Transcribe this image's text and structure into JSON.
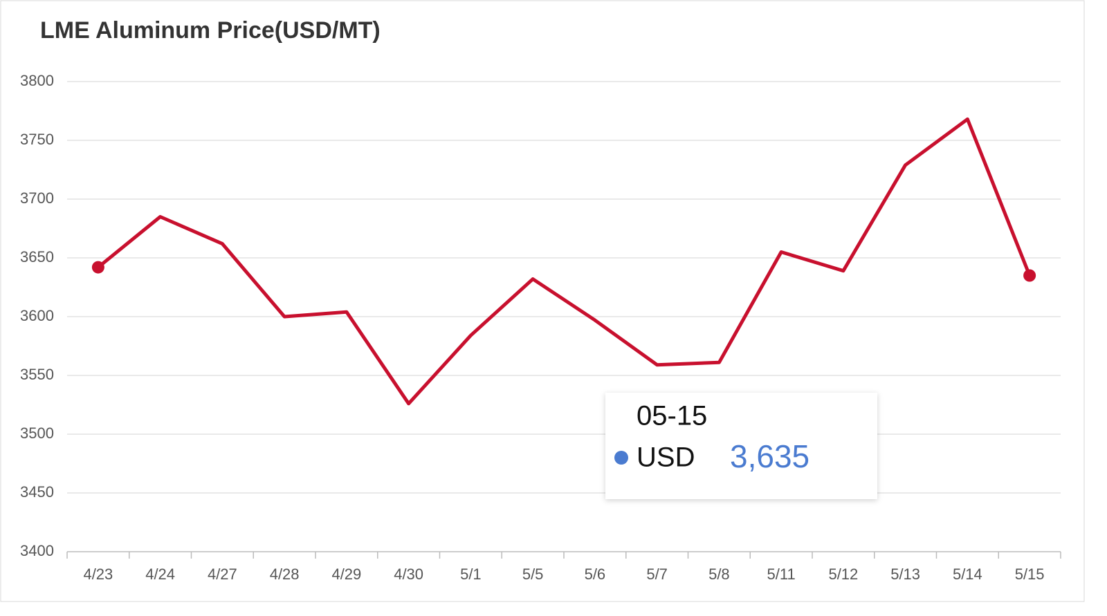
{
  "chart_data": {
    "type": "line",
    "title": "LME Aluminum Price(USD/MT)",
    "categories": [
      "4/23",
      "4/24",
      "4/27",
      "4/28",
      "4/29",
      "4/30",
      "5/1",
      "5/5",
      "5/6",
      "5/7",
      "5/8",
      "5/11",
      "5/12",
      "5/13",
      "5/14",
      "5/15"
    ],
    "series": [
      {
        "name": "USD",
        "color": "#c8102e",
        "values": [
          3642,
          3685,
          3662,
          3600,
          3604,
          3526,
          3584,
          3632,
          3597,
          3559,
          3561,
          3655,
          3639,
          3729,
          3768,
          3635
        ]
      }
    ],
    "ylim": [
      3400,
      3800
    ],
    "yticks": [
      3400,
      3450,
      3500,
      3550,
      3600,
      3650,
      3700,
      3750,
      3800
    ],
    "grid": true,
    "tooltip": {
      "x": "05-15",
      "value_label": "3,635",
      "color": "#4a7bd0"
    }
  }
}
